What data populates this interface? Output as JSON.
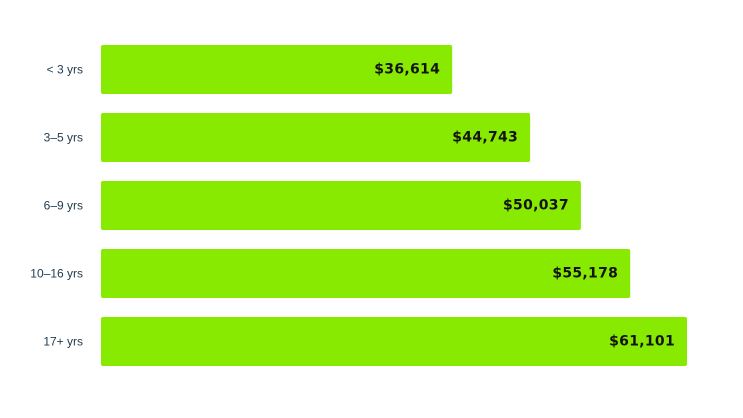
{
  "chart_data": {
    "type": "bar",
    "orientation": "horizontal",
    "categories": [
      "< 3 yrs",
      "3–5 yrs",
      "6–9 yrs",
      "10–16 yrs",
      "17+ yrs"
    ],
    "values": [
      36614,
      44743,
      50037,
      55178,
      61101
    ],
    "data_labels": [
      "$36,614",
      "$44,743",
      "$50,037",
      "$55,178",
      "$61,101"
    ],
    "title": "",
    "xlabel": "",
    "ylabel": "",
    "bar_color": "#88ea00",
    "grid": false,
    "legend": "none"
  }
}
